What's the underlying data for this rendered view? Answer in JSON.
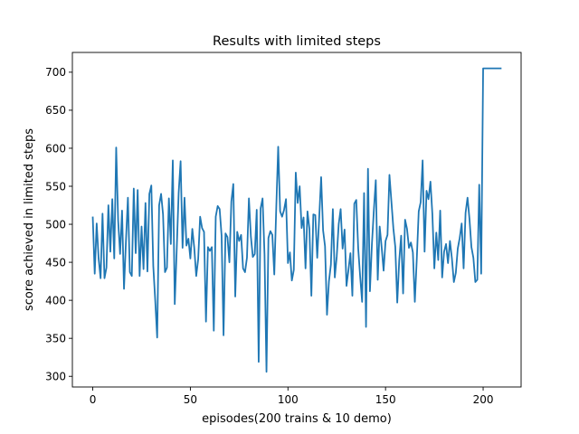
{
  "chart_data": {
    "type": "line",
    "title": "Results with limited steps",
    "xlabel": "episodes(200 trains & 10 demo)",
    "ylabel": "score achieved in limited steps",
    "xlim": [
      -10.45,
      219.45
    ],
    "ylim": [
      286,
      726
    ],
    "xticks": [
      0,
      50,
      100,
      150,
      200
    ],
    "yticks": [
      300,
      350,
      400,
      450,
      500,
      550,
      600,
      650,
      700
    ],
    "grid": false,
    "color": "#1f77b4",
    "x_start": 0,
    "values": [
      509,
      435,
      501,
      455,
      429,
      514,
      429,
      443,
      525,
      464,
      533,
      455,
      601,
      505,
      461,
      518,
      415,
      478,
      535,
      437,
      432,
      547,
      462,
      545,
      432,
      497,
      441,
      528,
      438,
      540,
      551,
      445,
      400,
      351,
      525,
      540,
      513,
      437,
      443,
      534,
      474,
      584,
      395,
      466,
      541,
      583,
      469,
      535,
      472,
      481,
      455,
      494,
      469,
      432,
      454,
      510,
      495,
      490,
      372,
      470,
      465,
      470,
      360,
      510,
      524,
      520,
      485,
      354,
      488,
      483,
      450,
      530,
      553,
      405,
      490,
      478,
      486,
      442,
      437,
      456,
      534,
      484,
      457,
      461,
      519,
      319,
      521,
      534,
      460,
      306,
      482,
      491,
      486,
      434,
      521,
      602,
      517,
      510,
      519,
      533,
      449,
      463,
      426,
      440,
      568,
      528,
      550,
      495,
      509,
      442,
      517,
      494,
      406,
      513,
      512,
      456,
      508,
      562,
      492,
      471,
      381,
      425,
      447,
      520,
      430,
      458,
      500,
      520,
      468,
      493,
      419,
      440,
      462,
      406,
      527,
      532,
      468,
      431,
      398,
      541,
      365,
      573,
      412,
      473,
      518,
      558,
      427,
      497,
      470,
      439,
      478,
      486,
      565,
      530,
      495,
      470,
      397,
      452,
      485,
      409,
      506,
      494,
      469,
      476,
      463,
      398,
      454,
      517,
      529,
      584,
      464,
      544,
      533,
      556,
      513,
      442,
      489,
      453,
      518,
      430,
      464,
      474,
      449,
      478,
      455,
      424,
      436,
      468,
      482,
      501,
      442,
      515,
      535,
      507,
      470,
      456,
      424,
      427,
      552,
      435,
      705,
      705,
      705,
      705,
      705,
      705,
      705,
      705,
      705,
      705
    ]
  }
}
